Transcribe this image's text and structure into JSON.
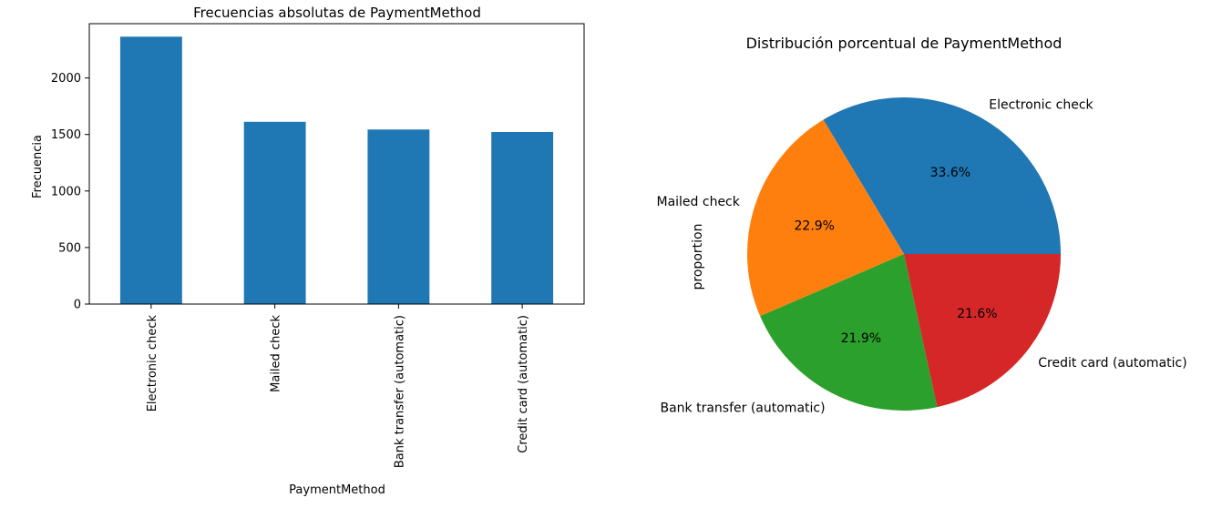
{
  "chart_data": [
    {
      "type": "bar",
      "title": "Frecuencias absolutas de PaymentMethod",
      "xlabel": "PaymentMethod",
      "ylabel": "Frecuencia",
      "categories": [
        "Electronic check",
        "Mailed check",
        "Bank transfer (automatic)",
        "Credit card (automatic)"
      ],
      "values": [
        2365,
        1612,
        1544,
        1522
      ],
      "ylim": [
        0,
        2480
      ],
      "yticks": [
        0,
        500,
        1000,
        1500,
        2000
      ],
      "ytick_labels": [
        "0",
        "500",
        "1000",
        "1500",
        "2000"
      ],
      "color": "#1f77b4",
      "grid": false
    },
    {
      "type": "pie",
      "title": "Distribución porcentual de PaymentMethod",
      "ylabel": "proportion",
      "labels": [
        "Electronic check",
        "Mailed check",
        "Bank transfer (automatic)",
        "Credit card (automatic)"
      ],
      "values": [
        33.6,
        22.9,
        21.9,
        21.6
      ],
      "pct_labels": [
        "33.6%",
        "22.9%",
        "21.9%",
        "21.6%"
      ],
      "colors": [
        "#1f77b4",
        "#ff7f0e",
        "#2ca02c",
        "#d62728"
      ]
    }
  ]
}
